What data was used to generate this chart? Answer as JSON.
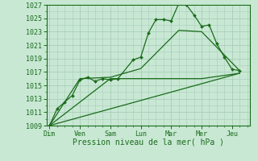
{
  "background_color": "#c8e8d4",
  "plot_bg_color": "#c8e8d4",
  "grid_color": "#a8cdb8",
  "line_color": "#1a6b1a",
  "xlabel": "Pression niveau de la mer( hPa )",
  "ylim": [
    1009,
    1027
  ],
  "ytick_major": [
    1009,
    1011,
    1013,
    1015,
    1017,
    1019,
    1021,
    1023,
    1025,
    1027
  ],
  "xtick_labels": [
    "Dim",
    "Ven",
    "Sam",
    "Lun",
    "Mar",
    "Mer",
    "Jeu"
  ],
  "xtick_positions": [
    0,
    1,
    2,
    3,
    4,
    5,
    6
  ],
  "xlim": [
    -0.1,
    6.6
  ],
  "line1_x": [
    0.0,
    0.25,
    0.5,
    0.75,
    1.0,
    1.25,
    1.5,
    1.75,
    2.0,
    2.25,
    2.75,
    3.0,
    3.25,
    3.5,
    3.75,
    4.0,
    4.25,
    4.5,
    4.75,
    5.0,
    5.25,
    5.5,
    5.75,
    6.0,
    6.25
  ],
  "line1_y": [
    1009.0,
    1011.5,
    1012.5,
    1013.5,
    1015.8,
    1016.2,
    1015.6,
    1016.0,
    1015.8,
    1016.0,
    1018.8,
    1019.2,
    1022.8,
    1024.8,
    1024.8,
    1024.6,
    1027.2,
    1027.0,
    1025.5,
    1023.8,
    1024.0,
    1021.2,
    1019.2,
    1017.4,
    1017.2
  ],
  "line2_x": [
    0.0,
    6.25
  ],
  "line2_y": [
    1009.0,
    1016.8
  ],
  "line3_x": [
    0.0,
    2.0,
    4.75,
    5.0,
    6.25
  ],
  "line3_y": [
    1009.0,
    1016.0,
    1016.0,
    1016.0,
    1016.8
  ],
  "line4_x": [
    0.0,
    1.0,
    2.0,
    3.0,
    4.25,
    5.0,
    6.25
  ],
  "line4_y": [
    1009.0,
    1016.0,
    1016.2,
    1017.5,
    1023.2,
    1023.0,
    1017.2
  ]
}
